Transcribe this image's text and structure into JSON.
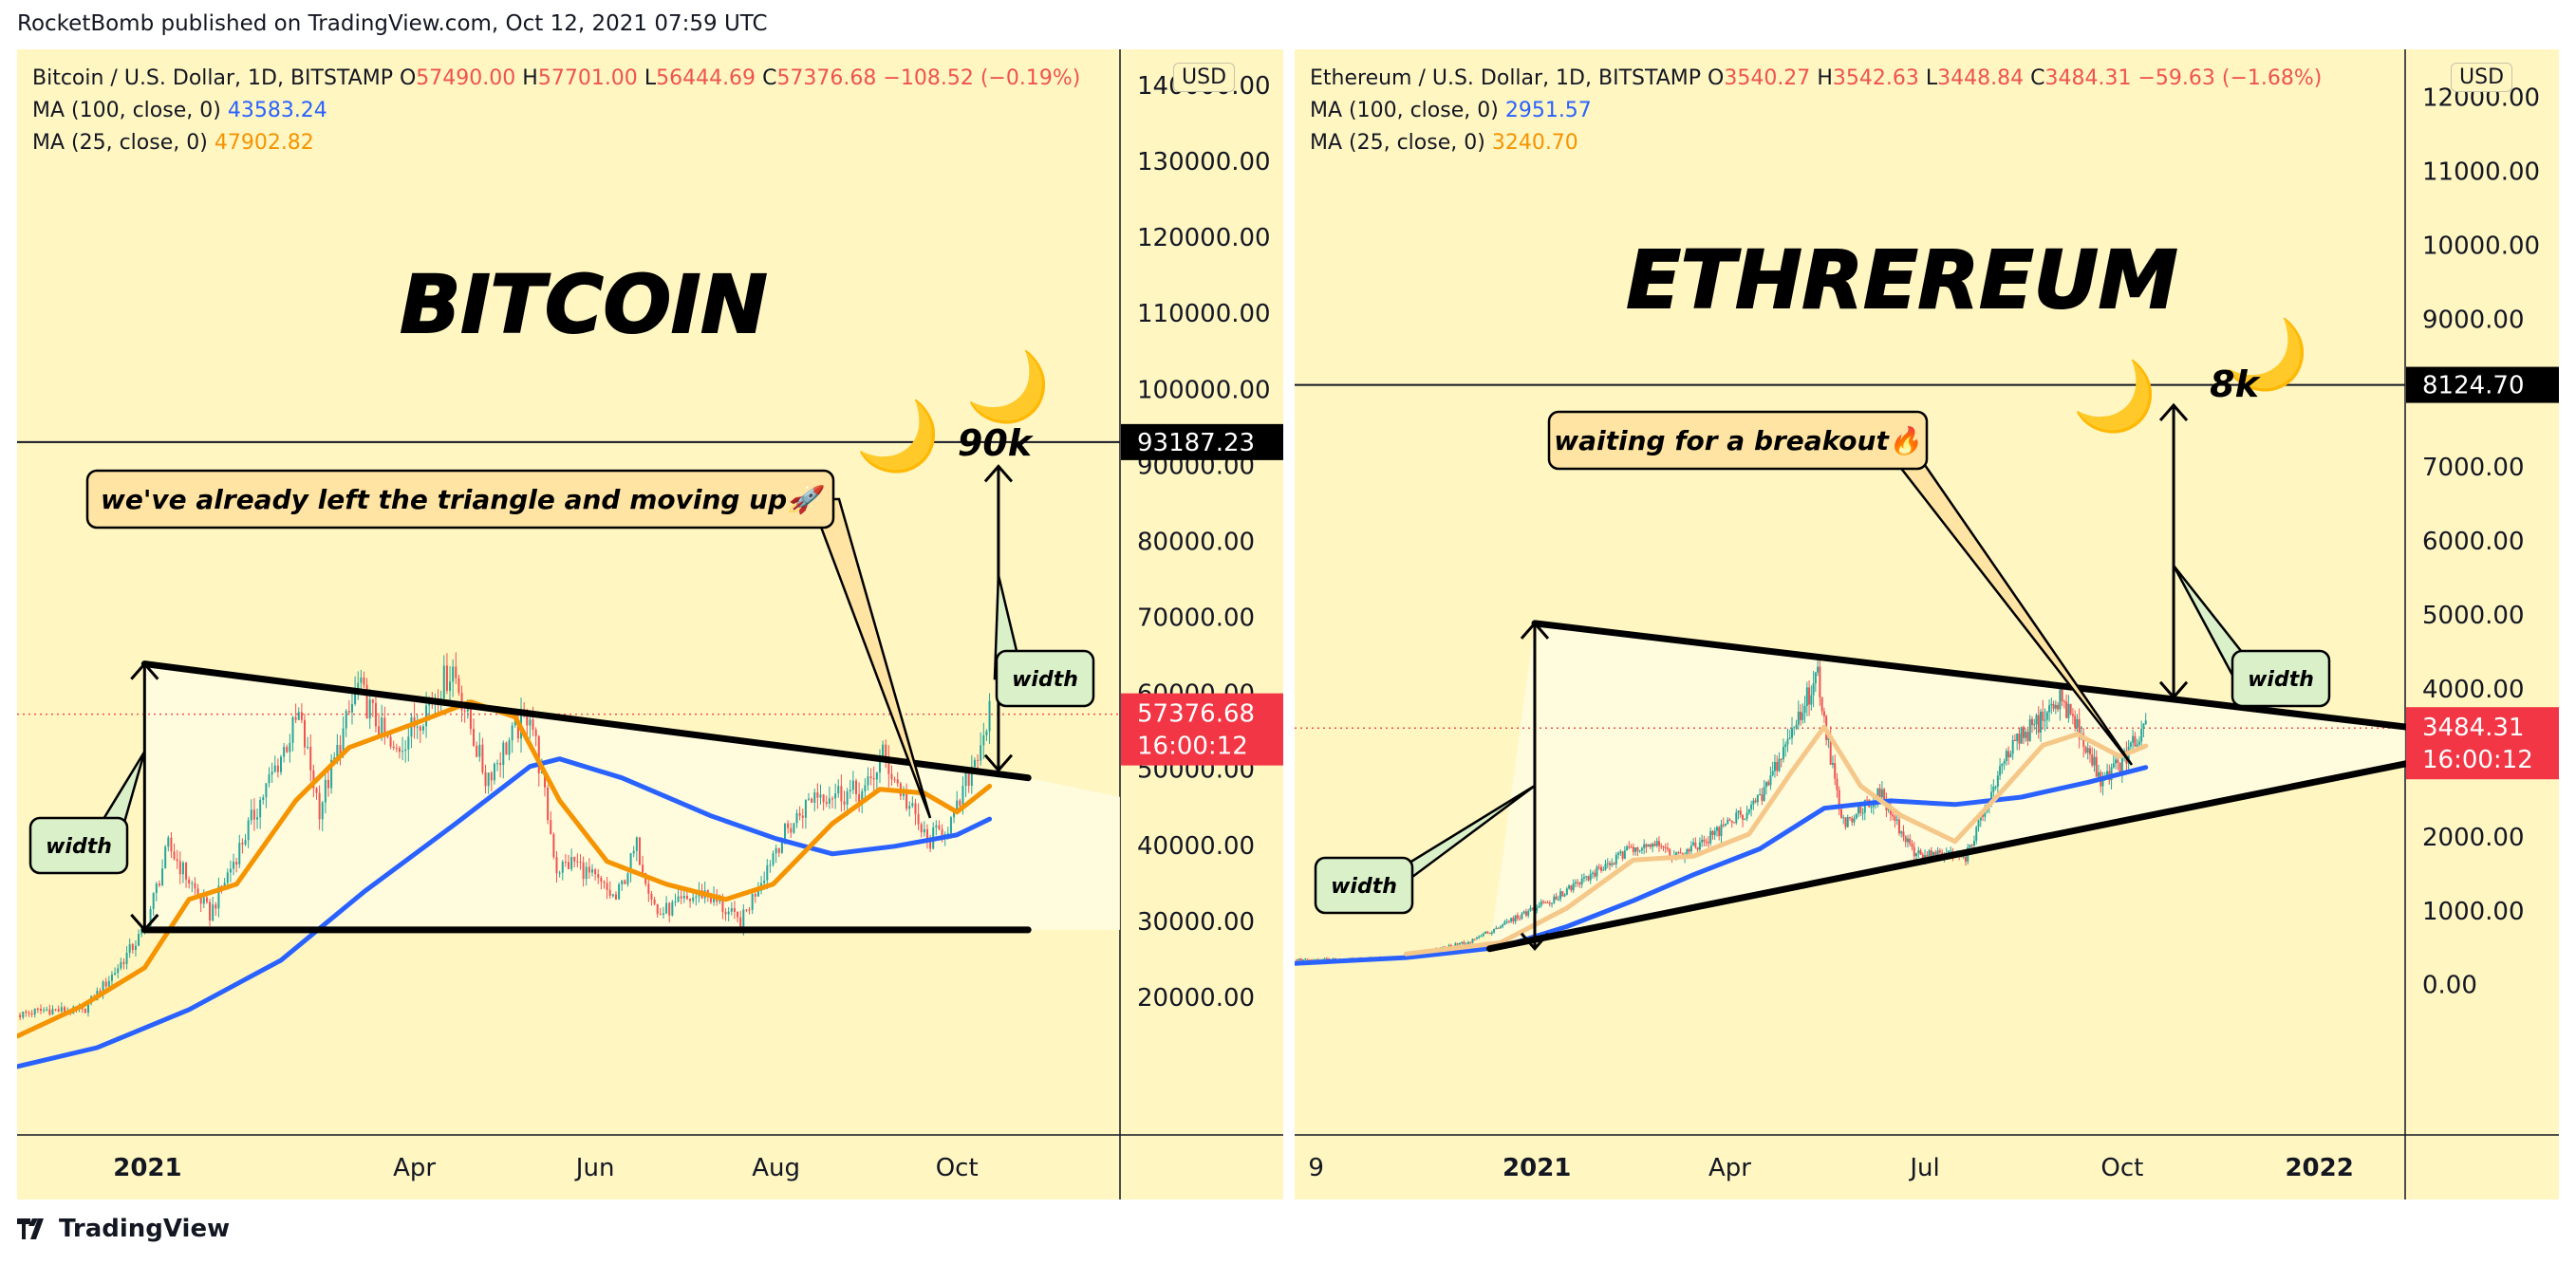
{
  "header": {
    "publisher_line": "RocketBomb published on TradingView.com, Oct 12, 2021 07:59 UTC"
  },
  "footer": {
    "brand": "TradingView"
  },
  "chart_data": [
    {
      "type": "line",
      "symbol": "Bitcoin / U.S. Dollar, 1D, BITSTAMP",
      "ohlc": {
        "open_label": "O",
        "open": "57490.00",
        "high_label": "H",
        "high": "57701.00",
        "low_label": "L",
        "low": "56444.69",
        "close_label": "C",
        "close": "57376.68",
        "change": "−108.52 (−0.19%)"
      },
      "indicators": [
        {
          "label": "MA (100, close, 0)",
          "value": "43583.24",
          "color": "#2962ff"
        },
        {
          "label": "MA (25, close, 0)",
          "value": "47902.82",
          "color": "#f59400"
        }
      ],
      "currency_label": "USD",
      "title": "BITCOIN",
      "x_months": [
        "2021-01",
        "2021-02",
        "2021-03",
        "2021-04",
        "2021-05",
        "2021-06",
        "2021-07",
        "2021-08",
        "2021-09",
        "2021-10",
        "2021-11"
      ],
      "xlim": [
        "2020-11-18",
        "2021-11-25"
      ],
      "x_ticks": [
        {
          "date": "2021-01-01",
          "label": "2021"
        },
        {
          "date": "2021-04-01",
          "label": "Apr"
        },
        {
          "date": "2021-06-01",
          "label": "Jun"
        },
        {
          "date": "2021-08-01",
          "label": "Aug"
        },
        {
          "date": "2021-10-01",
          "label": "Oct"
        }
      ],
      "ylim": [
        10000,
        142000
      ],
      "y_ticks": [
        "140000.00",
        "130000.00",
        "120000.00",
        "110000.00",
        "100000.00",
        "90000.00",
        "80000.00",
        "70000.00",
        "60000.00",
        "50000.00",
        "40000.00",
        "30000.00",
        "20000.00"
      ],
      "y_tick_values": [
        140000,
        130000,
        120000,
        110000,
        100000,
        90000,
        80000,
        70000,
        60000,
        50000,
        40000,
        30000,
        20000
      ],
      "series": [
        {
          "name": "MA (100, close, 0)",
          "color": "#2962ff",
          "points": [
            [
              "2020-11-18",
              11000
            ],
            [
              "2020-12-15",
              13500
            ],
            [
              "2021-01-15",
              18500
            ],
            [
              "2021-02-15",
              25000
            ],
            [
              "2021-03-15",
              34000
            ],
            [
              "2021-04-15",
              43000
            ],
            [
              "2021-05-10",
              50500
            ],
            [
              "2021-05-20",
              51500
            ],
            [
              "2021-06-10",
              49000
            ],
            [
              "2021-07-10",
              44000
            ],
            [
              "2021-08-01",
              41000
            ],
            [
              "2021-08-20",
              39000
            ],
            [
              "2021-09-10",
              40000
            ],
            [
              "2021-10-01",
              41500
            ],
            [
              "2021-10-12",
              43583
            ]
          ]
        },
        {
          "name": "MA (25, close, 0)",
          "color": "#f59400",
          "points": [
            [
              "2020-11-18",
              15000
            ],
            [
              "2020-12-10",
              19000
            ],
            [
              "2020-12-31",
              24000
            ],
            [
              "2021-01-15",
              33000
            ],
            [
              "2021-01-31",
              35000
            ],
            [
              "2021-02-20",
              46000
            ],
            [
              "2021-03-10",
              53000
            ],
            [
              "2021-03-31",
              56000
            ],
            [
              "2021-04-20",
              59000
            ],
            [
              "2021-05-05",
              57000
            ],
            [
              "2021-05-20",
              46000
            ],
            [
              "2021-06-05",
              38000
            ],
            [
              "2021-06-25",
              35000
            ],
            [
              "2021-07-15",
              33000
            ],
            [
              "2021-07-31",
              35000
            ],
            [
              "2021-08-20",
              43000
            ],
            [
              "2021-09-05",
              47500
            ],
            [
              "2021-09-20",
              47000
            ],
            [
              "2021-10-01",
              44500
            ],
            [
              "2021-10-12",
              47903
            ]
          ]
        },
        {
          "name": "price",
          "points": [
            [
              "2020-11-18",
              17800
            ],
            [
              "2020-11-28",
              18500
            ],
            [
              "2020-12-10",
              18200
            ],
            [
              "2020-12-20",
              23000
            ],
            [
              "2020-12-31",
              29000
            ],
            [
              "2021-01-08",
              40000
            ],
            [
              "2021-01-22",
              31000
            ],
            [
              "2021-02-08",
              46000
            ],
            [
              "2021-02-21",
              57000
            ],
            [
              "2021-02-28",
              45000
            ],
            [
              "2021-03-13",
              61000
            ],
            [
              "2021-03-25",
              52000
            ],
            [
              "2021-04-14",
              63500
            ],
            [
              "2021-04-25",
              49000
            ],
            [
              "2021-05-10",
              58000
            ],
            [
              "2021-05-19",
              37000
            ],
            [
              "2021-05-25",
              38000
            ],
            [
              "2021-06-08",
              33000
            ],
            [
              "2021-06-15",
              40000
            ],
            [
              "2021-06-22",
              31000
            ],
            [
              "2021-07-08",
              34000
            ],
            [
              "2021-07-20",
              29800
            ],
            [
              "2021-08-01",
              40000
            ],
            [
              "2021-08-14",
              47000
            ],
            [
              "2021-08-31",
              47000
            ],
            [
              "2021-09-06",
              52000
            ],
            [
              "2021-09-21",
              40500
            ],
            [
              "2021-09-30",
              43500
            ],
            [
              "2021-10-12",
              57376
            ]
          ]
        }
      ],
      "shapes": {
        "triangle_upper": [
          [
            "2020-12-31",
            64000
          ],
          [
            "2021-10-25",
            49000
          ]
        ],
        "triangle_lower": [
          [
            "2020-12-31",
            29000
          ],
          [
            "2021-10-25",
            29000
          ]
        ],
        "projection_right": "2021-11-25",
        "target_level": 93187.23,
        "width_arrow_left": {
          "x": "2020-12-31",
          "y1": 29000,
          "y2": 64000
        },
        "width_arrow_right": {
          "x": "2021-10-15",
          "y1": 50000,
          "y2": 90000
        }
      },
      "price_label": "57376.68",
      "countdown": "16:00:12",
      "target_label": "93187.23",
      "annotations": {
        "callout": "we've already left the triangle and moving up🚀",
        "width_left": "width",
        "width_right": "width",
        "target_text": "90k",
        "moon": "🌙"
      }
    },
    {
      "type": "line",
      "symbol": "Ethereum / U.S. Dollar, 1D, BITSTAMP",
      "ohlc": {
        "open_label": "O",
        "open": "3540.27",
        "high_label": "H",
        "high": "3542.63",
        "low_label": "L",
        "low": "3448.84",
        "close_label": "C",
        "close": "3484.31",
        "change": "−59.63 (−1.68%)"
      },
      "indicators": [
        {
          "label": "MA (100, close, 0)",
          "value": "2951.57",
          "color": "#2962ff"
        },
        {
          "label": "MA (25, close, 0)",
          "value": "3240.70",
          "color": "#f59400"
        }
      ],
      "currency_label": "USD",
      "title": "ETHREREUM",
      "x_months": [
        "2020-10",
        "2020-11",
        "2020-12",
        "2021-01",
        "2021-02",
        "2021-03",
        "2021-04",
        "2021-05",
        "2021-06",
        "2021-07",
        "2021-08",
        "2021-09",
        "2021-10",
        "2021-11",
        "2021-12",
        "2022-01",
        "2022-02"
      ],
      "xlim": [
        "2020-09-10",
        "2022-02-10"
      ],
      "x_ticks": [
        {
          "date": "2020-09-20",
          "label": "9"
        },
        {
          "date": "2021-01-01",
          "label": "2021"
        },
        {
          "date": "2021-04-01",
          "label": "Apr"
        },
        {
          "date": "2021-07-01",
          "label": "Jul"
        },
        {
          "date": "2021-10-01",
          "label": "Oct"
        },
        {
          "date": "2022-01-01",
          "label": "2022"
        }
      ],
      "ylim": [
        -1300,
        12200
      ],
      "y_ticks": [
        "12000.00",
        "11000.00",
        "10000.00",
        "9000.00",
        "8000.00",
        "7000.00",
        "6000.00",
        "5000.00",
        "4000.00",
        "3000.00",
        "2000.00",
        "1000.00",
        "0.00"
      ],
      "y_tick_values": [
        12000,
        11000,
        10000,
        9000,
        8000,
        7000,
        6000,
        5000,
        4000,
        3000,
        2000,
        1000,
        0
      ],
      "series": [
        {
          "name": "MA (100, close, 0)",
          "color": "#2962ff",
          "points": [
            [
              "2020-09-10",
              300
            ],
            [
              "2020-11-01",
              380
            ],
            [
              "2020-12-15",
              520
            ],
            [
              "2021-01-15",
              800
            ],
            [
              "2021-02-15",
              1150
            ],
            [
              "2021-03-15",
              1500
            ],
            [
              "2021-04-15",
              1850
            ],
            [
              "2021-05-15",
              2400
            ],
            [
              "2021-06-15",
              2500
            ],
            [
              "2021-07-15",
              2450
            ],
            [
              "2021-08-15",
              2550
            ],
            [
              "2021-09-15",
              2750
            ],
            [
              "2021-10-12",
              2952
            ]
          ]
        },
        {
          "name": "MA (25, close, 0)",
          "color": "#f5c88a",
          "points": [
            [
              "2020-11-01",
              430
            ],
            [
              "2020-12-15",
              580
            ],
            [
              "2021-01-15",
              1050
            ],
            [
              "2021-02-15",
              1700
            ],
            [
              "2021-03-15",
              1750
            ],
            [
              "2021-04-10",
              2050
            ],
            [
              "2021-04-30",
              2900
            ],
            [
              "2021-05-15",
              3500
            ],
            [
              "2021-06-01",
              2700
            ],
            [
              "2021-06-20",
              2300
            ],
            [
              "2021-07-15",
              1950
            ],
            [
              "2021-08-05",
              2600
            ],
            [
              "2021-08-25",
              3250
            ],
            [
              "2021-09-10",
              3400
            ],
            [
              "2021-09-30",
              3100
            ],
            [
              "2021-10-12",
              3241
            ]
          ]
        },
        {
          "name": "price",
          "points": [
            [
              "2020-09-10",
              350
            ],
            [
              "2020-11-01",
              380
            ],
            [
              "2020-12-01",
              600
            ],
            [
              "2021-01-10",
              1200
            ],
            [
              "2021-02-20",
              1950
            ],
            [
              "2021-03-10",
              1750
            ],
            [
              "2021-04-15",
              2500
            ],
            [
              "2021-05-12",
              4200
            ],
            [
              "2021-05-23",
              2200
            ],
            [
              "2021-06-10",
              2600
            ],
            [
              "2021-06-25",
              1800
            ],
            [
              "2021-07-20",
              1750
            ],
            [
              "2021-08-10",
              3200
            ],
            [
              "2021-09-03",
              3900
            ],
            [
              "2021-09-21",
              2800
            ],
            [
              "2021-09-30",
              3000
            ],
            [
              "2021-10-12",
              3484
            ]
          ]
        }
      ],
      "shapes": {
        "triangle_upper": [
          [
            "2020-12-31",
            4900
          ],
          [
            "2022-02-10",
            3500
          ]
        ],
        "triangle_lower": [
          [
            "2020-12-10",
            500
          ],
          [
            "2022-02-10",
            3000
          ]
        ],
        "target_level": 8124.7,
        "width_arrow_left": {
          "x": "2020-12-31",
          "y1": 500,
          "y2": 4900
        },
        "width_arrow_right": {
          "x": "2021-10-25",
          "y1": 3900,
          "y2": 7850
        }
      },
      "price_label": "3484.31",
      "countdown": "16:00:12",
      "target_label": "8124.70",
      "annotations": {
        "callout": "waiting for a breakout🔥",
        "width_left": "width",
        "width_right": "width",
        "target_text": "8k",
        "moon": "🌙"
      }
    }
  ]
}
